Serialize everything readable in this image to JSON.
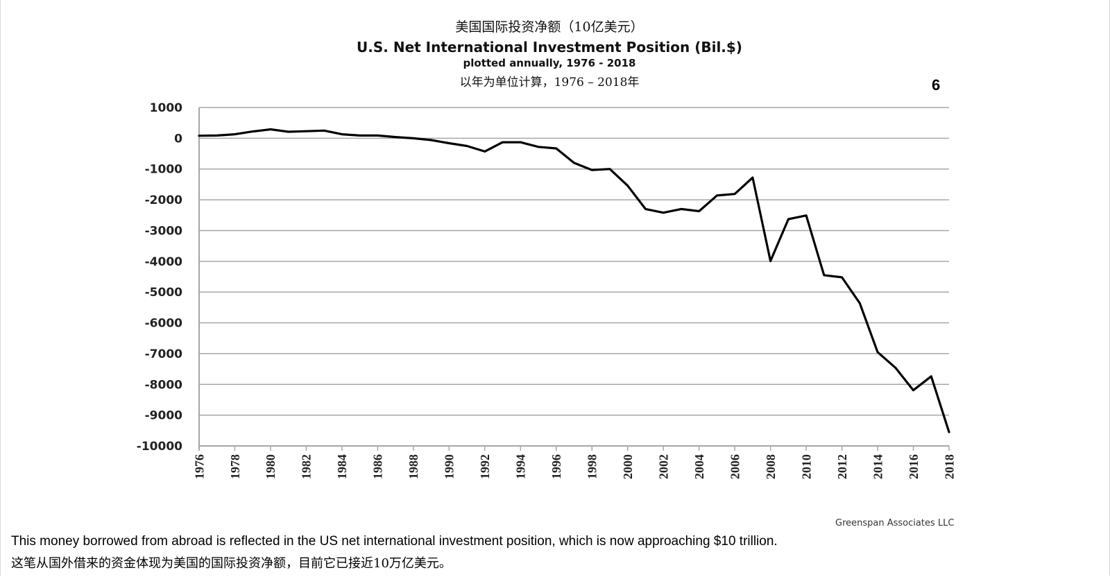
{
  "header": {
    "title_cn": "美国国际投资净额（10亿美元）",
    "title_en": "U.S. Net International Investment Position (Bil.$)",
    "subtitle_en": "plotted annually, 1976 - 2018",
    "subtitle_cn": "以年为单位计算，1976 – 2018年",
    "page_number": "6"
  },
  "footer": {
    "credit": "Greenspan Associates LLC",
    "caption_en": "This money borrowed from abroad is reflected in the US net international investment position, which is now approaching $10 trillion.",
    "caption_cn": "这笔从国外借来的资金体现为美国的国际投资净额，目前它已接近10万亿美元。"
  },
  "chart_data": {
    "type": "line",
    "title": "U.S. Net International Investment Position (Bil.$)",
    "xlabel": "",
    "ylabel": "",
    "ylim": [
      -10000,
      1000
    ],
    "yticks": [
      1000,
      0,
      -1000,
      -2000,
      -3000,
      -4000,
      -5000,
      -6000,
      -7000,
      -8000,
      -9000,
      -10000
    ],
    "xticks": [
      1976,
      1978,
      1980,
      1982,
      1984,
      1986,
      1988,
      1990,
      1992,
      1994,
      1996,
      1998,
      2000,
      2002,
      2004,
      2006,
      2008,
      2010,
      2012,
      2014,
      2016,
      2018
    ],
    "grid": true,
    "line_color": "#000000",
    "grid_color": "#a6a6a6",
    "x": [
      1976,
      1977,
      1978,
      1979,
      1980,
      1981,
      1982,
      1983,
      1984,
      1985,
      1986,
      1987,
      1988,
      1989,
      1990,
      1991,
      1992,
      1993,
      1994,
      1995,
      1996,
      1997,
      1998,
      1999,
      2000,
      2001,
      2002,
      2003,
      2004,
      2005,
      2006,
      2007,
      2008,
      2009,
      2010,
      2011,
      2012,
      2013,
      2014,
      2015,
      2016,
      2017,
      2018
    ],
    "series": [
      {
        "name": "U.S. Net International Investment Position",
        "values": [
          83,
          90,
          130,
          220,
          290,
          210,
          230,
          250,
          130,
          90,
          90,
          40,
          0,
          -60,
          -160,
          -250,
          -430,
          -130,
          -130,
          -280,
          -330,
          -800,
          -1030,
          -1000,
          -1540,
          -2300,
          -2420,
          -2300,
          -2370,
          -1860,
          -1810,
          -1280,
          -3990,
          -2630,
          -2510,
          -4450,
          -4520,
          -5360,
          -6950,
          -7460,
          -8190,
          -7740,
          -9550
        ]
      }
    ]
  }
}
